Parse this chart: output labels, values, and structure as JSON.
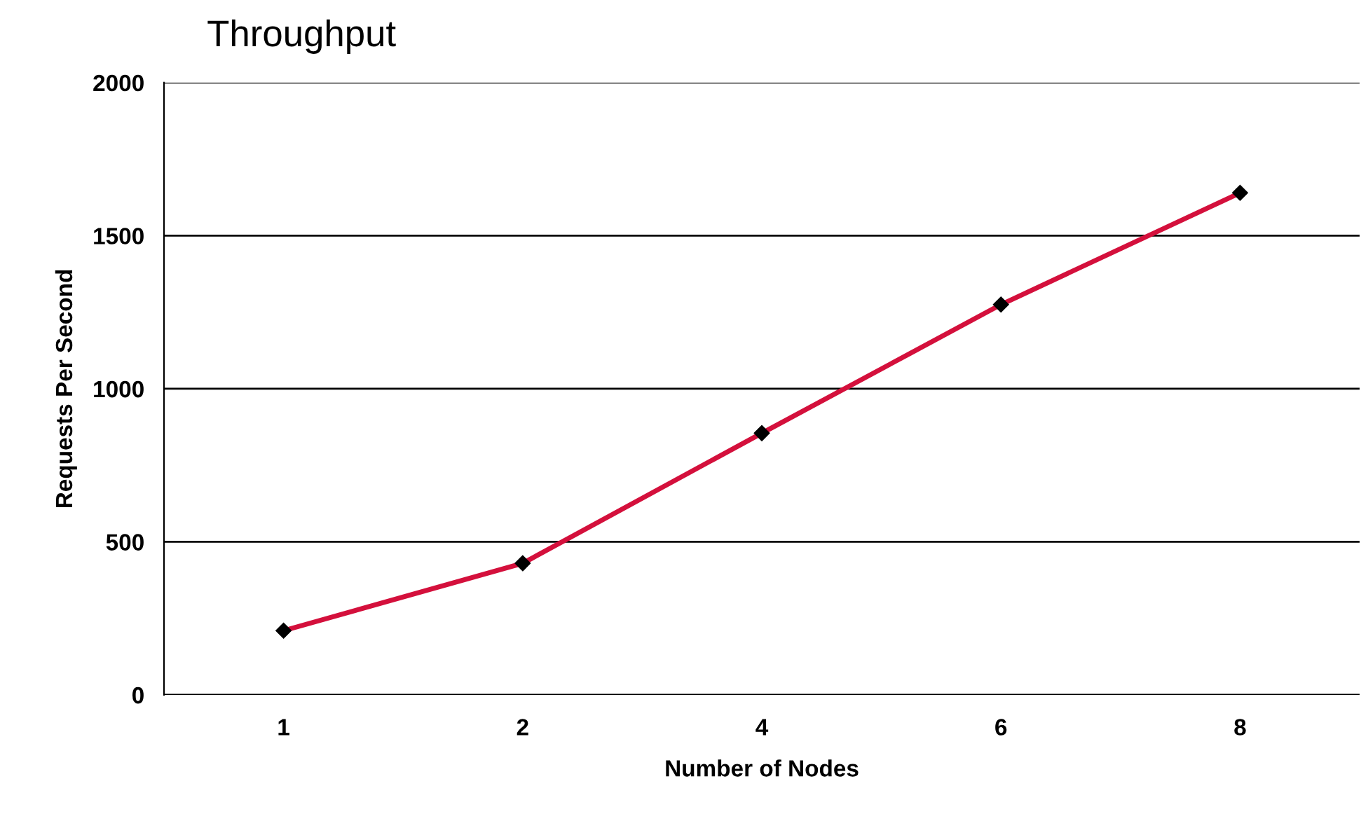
{
  "chart_data": {
    "type": "line",
    "title": "Throughput",
    "xlabel": "Number of Nodes",
    "ylabel": "Requests Per Second",
    "categories": [
      "1",
      "2",
      "4",
      "6",
      "8"
    ],
    "series": [
      {
        "color": "#d4103c",
        "values": [
          210,
          430,
          855,
          1275,
          1640
        ]
      }
    ],
    "marker": "diamond",
    "line_style": "solid",
    "ylim": [
      0,
      2000
    ],
    "yticks": [
      0,
      500,
      1000,
      1500,
      2000
    ],
    "grid": "y"
  }
}
